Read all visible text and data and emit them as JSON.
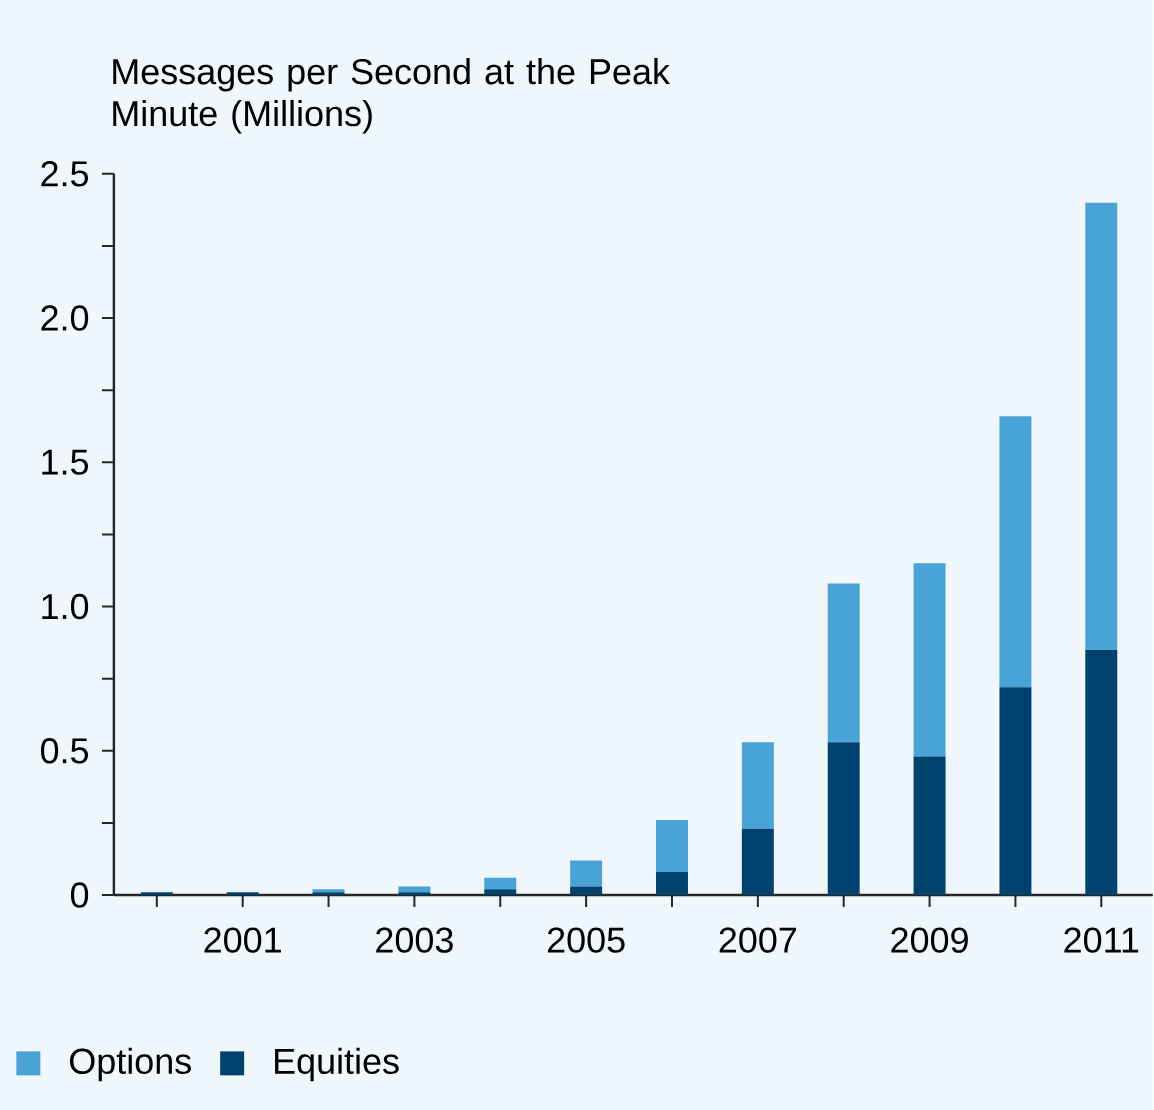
{
  "chart_data": {
    "type": "bar",
    "stacked": true,
    "ylabel": "Messages per Second at the Peak Minute (Millions)",
    "x": [
      2000,
      2001,
      2002,
      2003,
      2004,
      2005,
      2006,
      2007,
      2008,
      2009,
      2010,
      2011
    ],
    "series": [
      {
        "name": "Equities",
        "color": "#00426e",
        "values": [
          0.01,
          0.01,
          0.01,
          0.01,
          0.02,
          0.03,
          0.08,
          0.23,
          0.53,
          0.48,
          0.72,
          0.85
        ]
      },
      {
        "name": "Options",
        "color": "#4aa3d6",
        "values": [
          0,
          0,
          0.01,
          0.02,
          0.04,
          0.09,
          0.18,
          0.3,
          0.55,
          0.67,
          0.94,
          1.55
        ]
      }
    ],
    "xlim": [
      1999.5,
      2011.6
    ],
    "xticks": [
      {
        "value": 2000,
        "label": null
      },
      2001,
      {
        "value": 2002,
        "label": null
      },
      2003,
      {
        "value": 2004,
        "label": null
      },
      2005,
      {
        "value": 2006,
        "label": null
      },
      2007,
      {
        "value": 2008,
        "label": null
      },
      2009,
      {
        "value": 2010,
        "label": null
      },
      2011
    ],
    "ylim": [
      0,
      2.5
    ],
    "yticks": [
      0,
      {
        "value": 0.25,
        "label": null
      },
      0.5,
      {
        "value": 0.75,
        "label": null
      },
      {
        "value": 1,
        "label": "1.0"
      },
      {
        "value": 1.25,
        "label": null
      },
      1.5,
      {
        "value": 1.75,
        "label": null
      },
      {
        "value": 2,
        "label": "2.0"
      },
      {
        "value": 2.25,
        "label": null
      },
      2.5
    ],
    "legend": "bottom",
    "grid": false
  }
}
